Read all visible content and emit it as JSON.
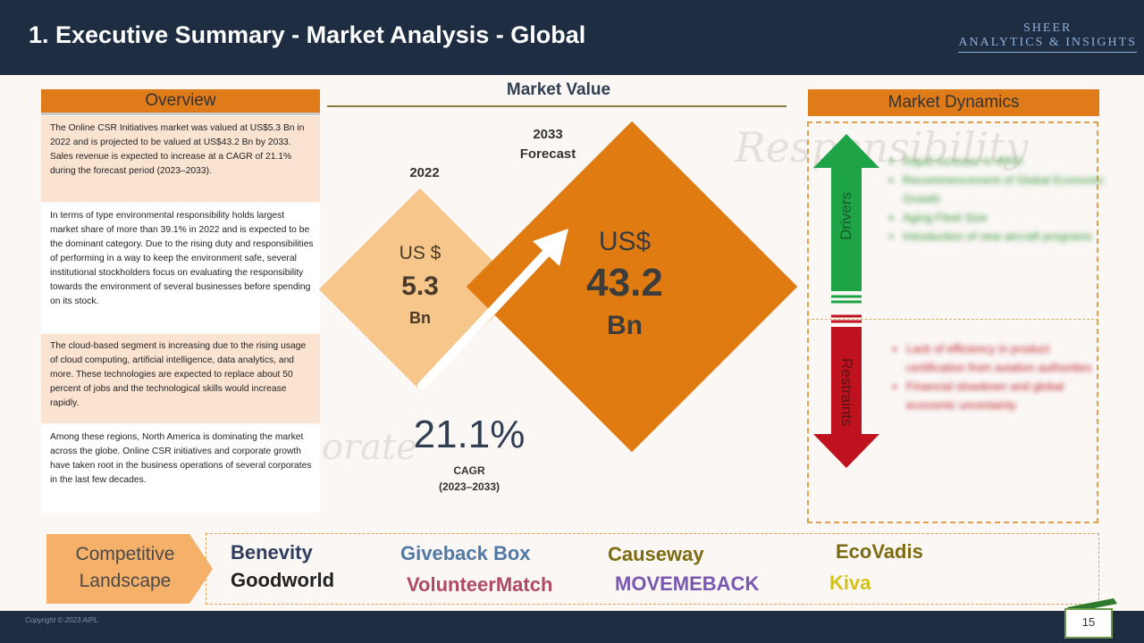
{
  "header": {
    "title": "1. Executive Summary - Market Analysis - Global",
    "logo_line1": "SHEER",
    "logo_line2": "ANALYTICS & INSIGHTS"
  },
  "watermark": {
    "word1": "Responsibility",
    "word2": "orate"
  },
  "overview": {
    "heading": "Overview",
    "paragraphs": [
      "The Online CSR Initiatives market was valued at US$5.3 Bn in 2022 and is projected to be valued at US$43.2 Bn by 2033. Sales revenue is expected to increase at a CAGR of 21.1% during the forecast period (2023–2033).",
      "In terms of type environmental responsibility holds largest market share of more than 39.1% in 2022 and is expected to be the dominant category. Due to the rising duty and responsibilities of performing in a way to keep the environment safe, several institutional stockholders focus on evaluating the responsibility towards the environment of several businesses before spending on its stock.",
      "The cloud-based segment is increasing due to the rising usage of cloud computing, artificial intelligence, data analytics, and more. These technologies are expected to replace about 50 percent of jobs and the technological skills would increase rapidly.",
      "Among these regions, North America is dominating the market across the globe. Online CSR initiatives and corporate growth have taken root in the business operations of several corporates in the last few decades."
    ]
  },
  "market_value": {
    "heading": "Market Value",
    "year_2022": "2022",
    "year_2033_line1": "2033",
    "year_2033_line2": "Forecast",
    "v2022": {
      "currency": "US $",
      "value": "5.3",
      "unit": "Bn"
    },
    "v2033": {
      "currency": "US$",
      "value": "43.2",
      "unit": "Bn"
    },
    "cagr_value": "21.1%",
    "cagr_label": "CAGR",
    "cagr_period": "(2023–2033)"
  },
  "market_dynamics": {
    "heading": "Market Dynamics",
    "drivers_label": "Drivers",
    "restraints_label": "Restraints",
    "drivers": [
      "Rapid increase in MRO",
      "Recommencement of Global Economic Growth",
      "Aging Fleet Size",
      "Introduction of new aircraft programs"
    ],
    "restraints": [
      "Lack of efficiency in product certification from aviation authorities",
      "Financial slowdown and global economic uncertainty"
    ],
    "colors": {
      "drivers": "#1ea446",
      "restraints": "#c0111f"
    }
  },
  "competitive_landscape": {
    "label_line1": "Competitive",
    "label_line2": "Landscape",
    "companies": [
      {
        "name": "Benevity",
        "color": "#2f3e5c"
      },
      {
        "name": "Giveback Box",
        "color": "#5079a6"
      },
      {
        "name": "Causeway",
        "color": "#7d6b12"
      },
      {
        "name": "EcoVadis",
        "color": "#7d6b12"
      },
      {
        "name": "Goodworld",
        "color": "#222222"
      },
      {
        "name": "VolunteerMatch",
        "color": "#b04a62"
      },
      {
        "name": "MOVEMEBACK",
        "color": "#7a57b0"
      },
      {
        "name": "Kiva",
        "color": "#d4c21a"
      }
    ]
  },
  "footer": {
    "copyright": "Copyright © 2023 AIPL",
    "page_number": "15"
  }
}
